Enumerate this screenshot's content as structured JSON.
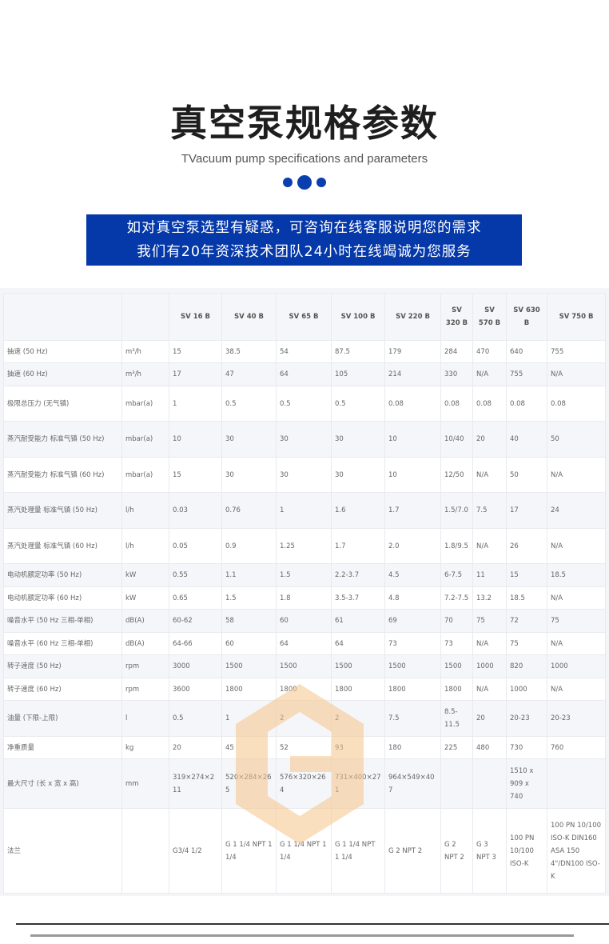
{
  "header": {
    "title": "真空泵规格参数",
    "subtitle": "TVacuum pump specifications and parameters"
  },
  "banner": {
    "line1": "如对真空泵选型有疑惑，可咨询在线客服说明您的需求",
    "line2": "我们有20年资深技术团队24小时在线竭诚为您服务"
  },
  "colors": {
    "accent": "#0538a8",
    "watermark": "#f5c48a"
  },
  "table": {
    "columns": [
      "",
      "",
      "SV 16 B",
      "SV 40 B",
      "SV 65 B",
      "SV 100 B",
      "SV 220 B",
      "SV 320 B",
      "SV 570 B",
      "SV 630 B",
      "SV 750 B"
    ],
    "rows": [
      {
        "label": "抽速 (50 Hz)",
        "unit": "m³/h",
        "values": [
          "15",
          "38.5",
          "54",
          "87.5",
          "179",
          "284",
          "470",
          "640",
          "755"
        ]
      },
      {
        "label": "抽速 (60 Hz)",
        "unit": "m³/h",
        "values": [
          "17",
          "47",
          "64",
          "105",
          "214",
          "330",
          "N/A",
          "755",
          "N/A"
        ]
      },
      {
        "label": "极限总压力 (无气镇)",
        "unit": "mbar(a)",
        "values": [
          "1",
          "0.5",
          "0.5",
          "0.5",
          "0.08",
          "0.08",
          "0.08",
          "0.08",
          "0.08"
        ]
      },
      {
        "label": "蒸汽耐受能力 标准气镇 (50 Hz)",
        "unit": "mbar(a)",
        "values": [
          "10",
          "30",
          "30",
          "30",
          "10",
          "10/40",
          "20",
          "40",
          "50"
        ]
      },
      {
        "label": "蒸汽耐受能力 标准气镇 (60 Hz)",
        "unit": "mbar(a)",
        "values": [
          "15",
          "30",
          "30",
          "30",
          "10",
          "12/50",
          "N/A",
          "50",
          "N/A"
        ]
      },
      {
        "label": "蒸汽处理量 标准气镇 (50 Hz)",
        "unit": "l/h",
        "values": [
          "0.03",
          "0.76",
          "1",
          "1.6",
          "1.7",
          "1.5/7.0",
          "7.5",
          "17",
          "24"
        ]
      },
      {
        "label": "蒸汽处理量 标准气镇 (60 Hz)",
        "unit": "l/h",
        "values": [
          "0.05",
          "0.9",
          "1.25",
          "1.7",
          "2.0",
          "1.8/9.5",
          "N/A",
          "26",
          "N/A"
        ]
      },
      {
        "label": "电动机额定功率 (50 Hz)",
        "unit": "kW",
        "values": [
          "0.55",
          "1.1",
          "1.5",
          "2.2-3.7",
          "4.5",
          "6-7.5",
          "11",
          "15",
          "18.5"
        ]
      },
      {
        "label": "电动机额定功率 (60 Hz)",
        "unit": "kW",
        "values": [
          "0.65",
          "1.5",
          "1.8",
          "3.5-3.7",
          "4.8",
          "7.2-7.5",
          "13.2",
          "18.5",
          "N/A"
        ]
      },
      {
        "label": "噪音水平 (50 Hz 三相-单相)",
        "unit": "dB(A)",
        "values": [
          "60-62",
          "58",
          "60",
          "61",
          "69",
          "70",
          "75",
          "72",
          "75"
        ]
      },
      {
        "label": "噪音水平 (60 Hz 三相-单相)",
        "unit": "dB(A)",
        "values": [
          "64-66",
          "60",
          "64",
          "64",
          "73",
          "73",
          "N/A",
          "75",
          "N/A"
        ]
      },
      {
        "label": "转子速度 (50 Hz)",
        "unit": "rpm",
        "values": [
          "3000",
          "1500",
          "1500",
          "1500",
          "1500",
          "1500",
          "1000",
          "820",
          "1000"
        ]
      },
      {
        "label": "转子速度 (60 Hz)",
        "unit": "rpm",
        "values": [
          "3600",
          "1800",
          "1800",
          "1800",
          "1800",
          "1800",
          "N/A",
          "1000",
          "N/A"
        ]
      },
      {
        "label": "油量 (下限-上限)",
        "unit": "l",
        "values": [
          "0.5",
          "1",
          "2",
          "2",
          "7.5",
          "8.5-11.5",
          "20",
          "20-23",
          "20-23"
        ]
      },
      {
        "label": "净重质量",
        "unit": "kg",
        "values": [
          "20",
          "45",
          "52",
          "93",
          "180",
          "225",
          "480",
          "730",
          "760"
        ]
      },
      {
        "label": "最大尺寸 (长 x 宽 x 高)",
        "unit": "mm",
        "values": [
          "319×274×211",
          "520×284×265",
          "576×320×264",
          "731×400×271",
          "964×549×407",
          "",
          "",
          "1510 x 909 x 740",
          ""
        ]
      },
      {
        "label": "法兰",
        "unit": "",
        "values": [
          "G3/4 1/2",
          "G 1 1/4 NPT 1 1/4",
          "G 1 1/4 NPT 1 1/4",
          "G 1 1/4 NPT 1 1/4",
          "G 2 NPT 2",
          "G 2 NPT 2",
          "G 3 NPT 3",
          "100 PN 10/100 ISO-K",
          "100 PN 10/100 ISO-K DIN160 ASA 150 4\"/DN100 ISO-K"
        ]
      }
    ]
  }
}
